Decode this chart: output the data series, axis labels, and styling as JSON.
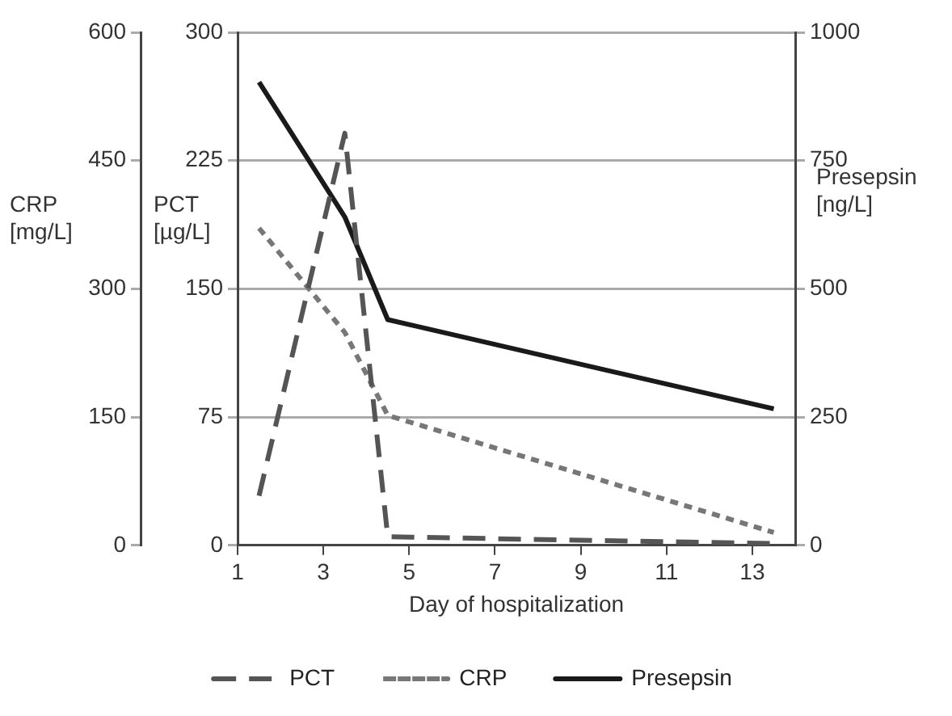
{
  "chart_data": {
    "type": "line",
    "xlabel": "Day of hospitalization",
    "ylabel": "CRP [mg/L]",
    "y2label": "Presepsin [ng/L]",
    "y3label": "PCT [µg/L]",
    "x": [
      1.5,
      3.5,
      4.5,
      13.5
    ],
    "xlim": [
      1,
      14
    ],
    "xticks": [
      1,
      3,
      5,
      7,
      9,
      11,
      13
    ],
    "ylim": [
      0,
      600
    ],
    "yticks": [
      0,
      150,
      300,
      450,
      600
    ],
    "y3lim": [
      0,
      300
    ],
    "y3ticks": [
      0,
      75,
      150,
      225,
      300
    ],
    "y2lim": [
      0,
      1000
    ],
    "y2ticks": [
      0,
      250,
      500,
      750,
      1000
    ],
    "series": [
      {
        "name": "PCT",
        "color": "#555555",
        "axis": "y3",
        "line_style": "dashed",
        "values": [
          29,
          241,
          5,
          1
        ]
      },
      {
        "name": "CRP",
        "color": "#777777",
        "axis": "y",
        "line_style": "dotted",
        "values": [
          371,
          249,
          152,
          15
        ]
      },
      {
        "name": "Presepsin",
        "color": "#1a1a1a",
        "axis": "y2",
        "line_style": "solid",
        "values": [
          903,
          640,
          440,
          266
        ]
      }
    ],
    "grid": "y",
    "legend": "bottom",
    "marker": "none"
  }
}
